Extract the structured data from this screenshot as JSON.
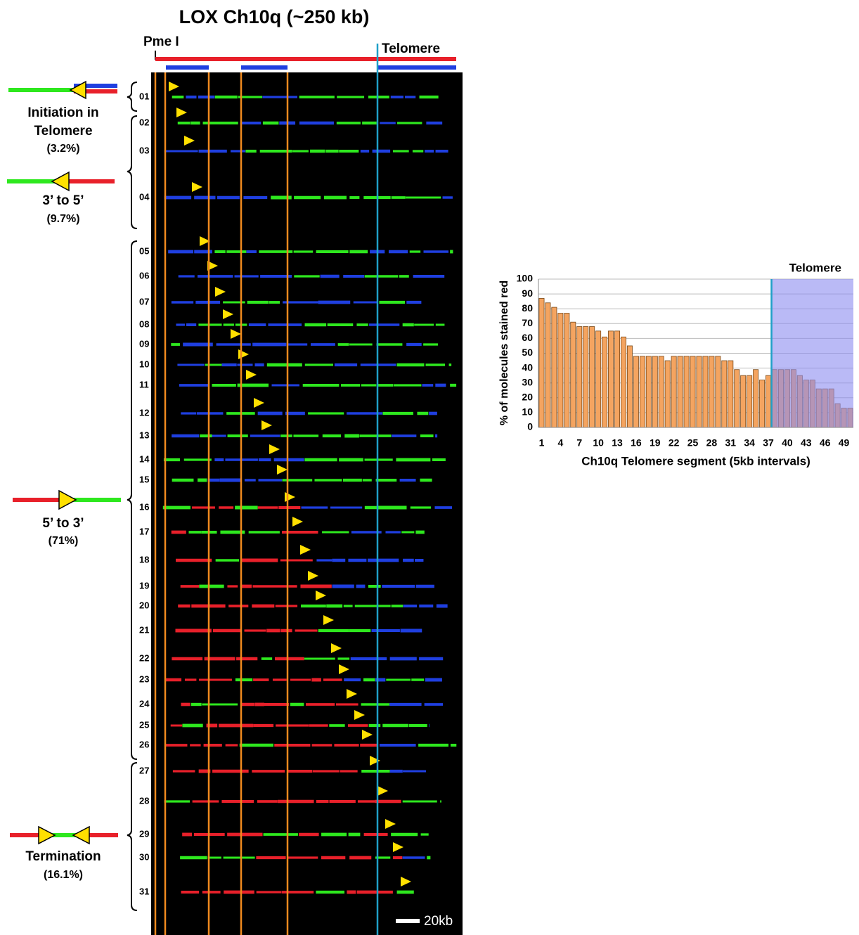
{
  "figure": {
    "title": "LOX Ch10q (~250 kb)",
    "pme_label": "Pme I",
    "telomere_label": "Telomere",
    "scale_label": "20kb",
    "molecules": [
      "01",
      "02",
      "03",
      "04",
      "05",
      "06",
      "07",
      "08",
      "09",
      "10",
      "11",
      "12",
      "13",
      "14",
      "15",
      "16",
      "17",
      "18",
      "19",
      "20",
      "21",
      "22",
      "23",
      "24",
      "25",
      "26",
      "27",
      "28",
      "29",
      "30",
      "31"
    ],
    "groups": [
      {
        "name": [
          "Initiation in",
          "Telomere"
        ],
        "percent": "(3.2%)"
      },
      {
        "name": [
          "3’ to 5’"
        ],
        "percent": "(9.7%)"
      },
      {
        "name": [
          "5’ to 3’"
        ],
        "percent": "(71%)"
      },
      {
        "name": [
          "Termination"
        ],
        "percent": "(16.1%)"
      }
    ]
  },
  "chart_data": {
    "type": "bar",
    "y_label": "% of molecules stained red",
    "x_label": "Ch10q Telomere segment  (5kb intervals)",
    "categories": [
      "1",
      null,
      null,
      "4",
      null,
      null,
      "7",
      null,
      null,
      "10",
      null,
      null,
      "13",
      null,
      null,
      "16",
      null,
      null,
      "19",
      null,
      null,
      "22",
      null,
      null,
      "25",
      null,
      null,
      "28",
      null,
      null,
      "31",
      null,
      null,
      "34",
      null,
      null,
      "37",
      null,
      null,
      "40",
      null,
      null,
      "43",
      null,
      null,
      "46",
      null,
      null,
      "49",
      null
    ],
    "values": [
      87,
      84,
      81,
      77,
      77,
      71,
      68,
      68,
      68,
      65,
      61,
      65,
      65,
      61,
      55,
      48,
      48,
      48,
      48,
      48,
      45,
      48,
      48,
      48,
      48,
      48,
      48,
      48,
      48,
      45,
      45,
      39,
      35,
      35,
      39,
      32,
      35,
      39,
      39,
      39,
      39,
      35,
      32,
      32,
      26,
      26,
      26,
      16,
      13,
      13
    ],
    "color": "#f4a460",
    "ylim": [
      0,
      100
    ],
    "yticks": [
      0,
      10,
      20,
      30,
      40,
      50,
      60,
      70,
      80,
      90,
      100
    ],
    "grid": true,
    "highlight": {
      "label": "Telomere",
      "from_index": 37,
      "color": "#8c8cf0",
      "line_color": "#1fa0c8"
    }
  }
}
